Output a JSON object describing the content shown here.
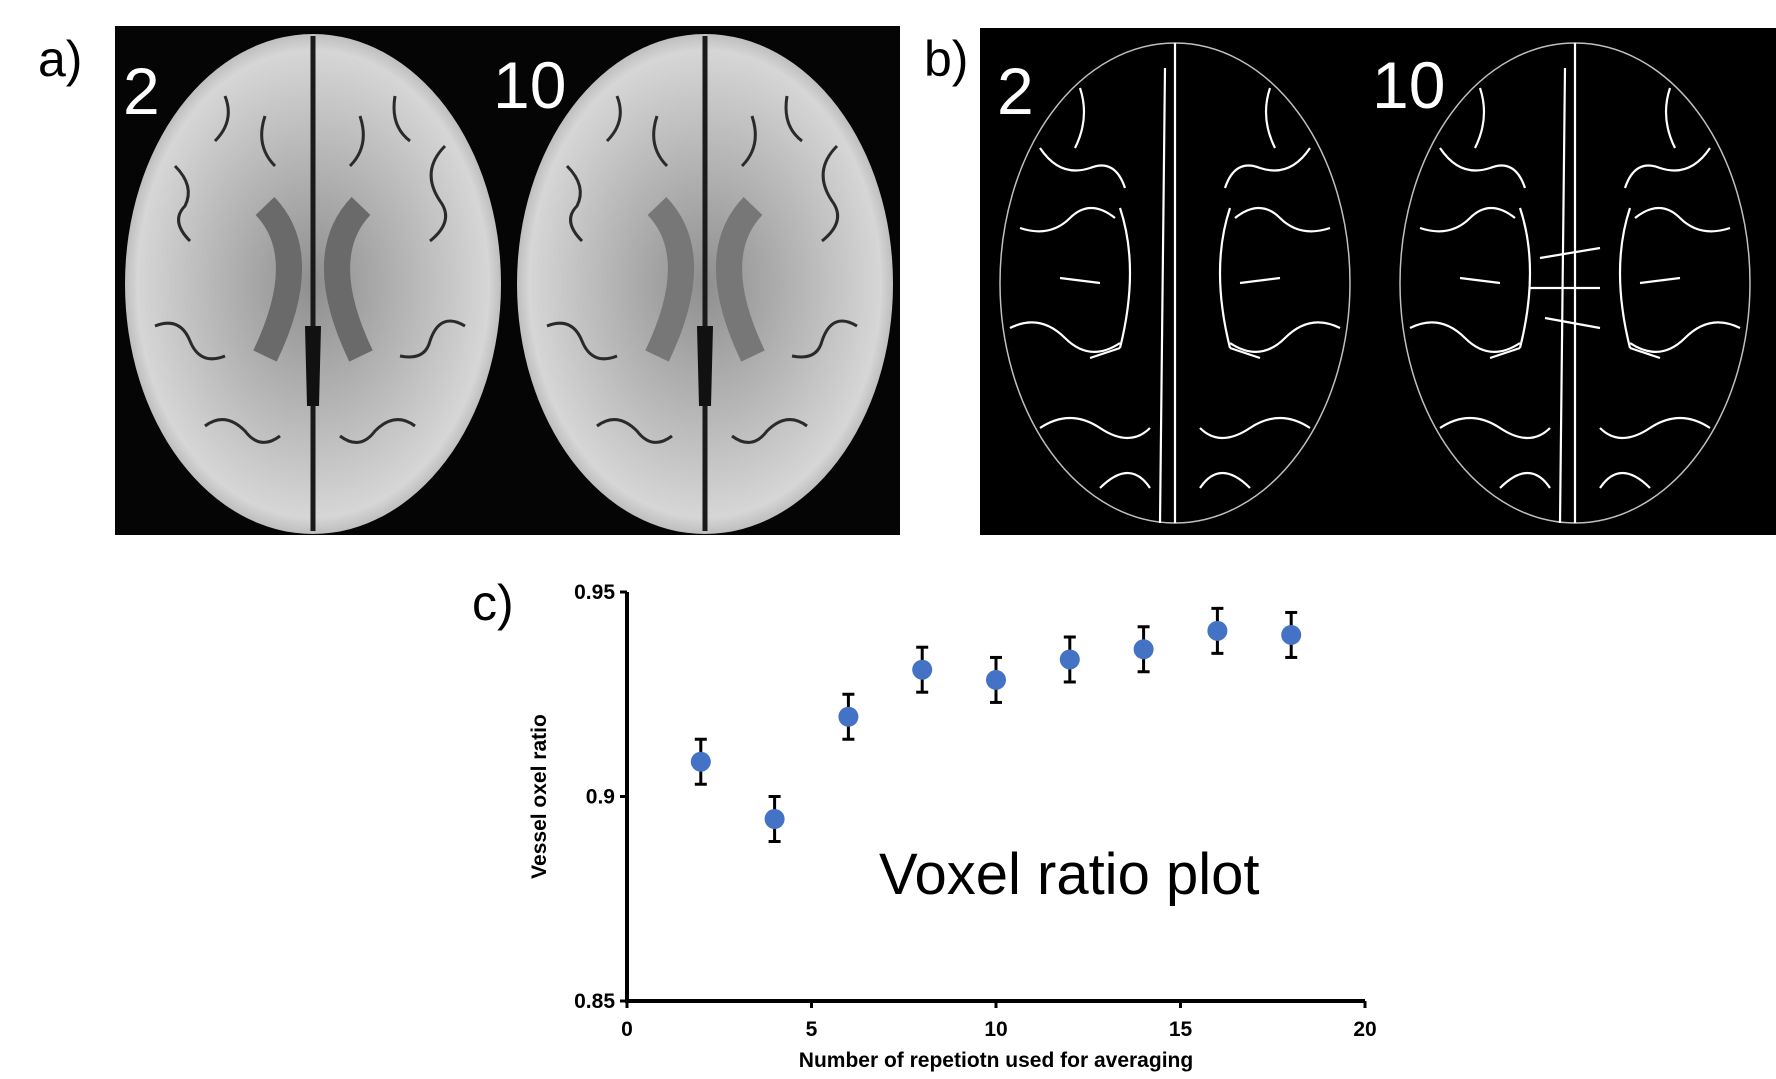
{
  "panels": {
    "a": {
      "letter": "a)",
      "left_label": "2",
      "right_label": "10"
    },
    "b": {
      "letter": "b)",
      "left_label": "2",
      "right_label": "10"
    },
    "c": {
      "letter": "c)"
    }
  },
  "chart_data": {
    "type": "scatter",
    "title": "",
    "annotation": "Voxel ratio plot",
    "xlabel": "Number of repetiotn used for averaging",
    "ylabel": "Vessel oxel ratio",
    "xlim": [
      0,
      20
    ],
    "ylim": [
      0.85,
      0.95
    ],
    "xticks": [
      "0",
      "5",
      "10",
      "15",
      "20"
    ],
    "yticks": [
      "0.85",
      "0.9",
      "0.95"
    ],
    "xtick_values": [
      0,
      5,
      10,
      15,
      20
    ],
    "ytick_values": [
      0.85,
      0.9,
      0.95
    ],
    "grid": false,
    "marker_color": "#4472c4",
    "error_bar_color": "#000000",
    "series": [
      {
        "x": [
          2,
          4,
          6,
          8,
          10,
          12,
          14,
          16,
          18
        ],
        "y": [
          0.9085,
          0.8945,
          0.9195,
          0.931,
          0.9285,
          0.9335,
          0.936,
          0.9405,
          0.9395
        ],
        "error": [
          0.0055,
          0.0055,
          0.0055,
          0.0055,
          0.0055,
          0.0055,
          0.0055,
          0.0055,
          0.0055
        ]
      }
    ]
  }
}
